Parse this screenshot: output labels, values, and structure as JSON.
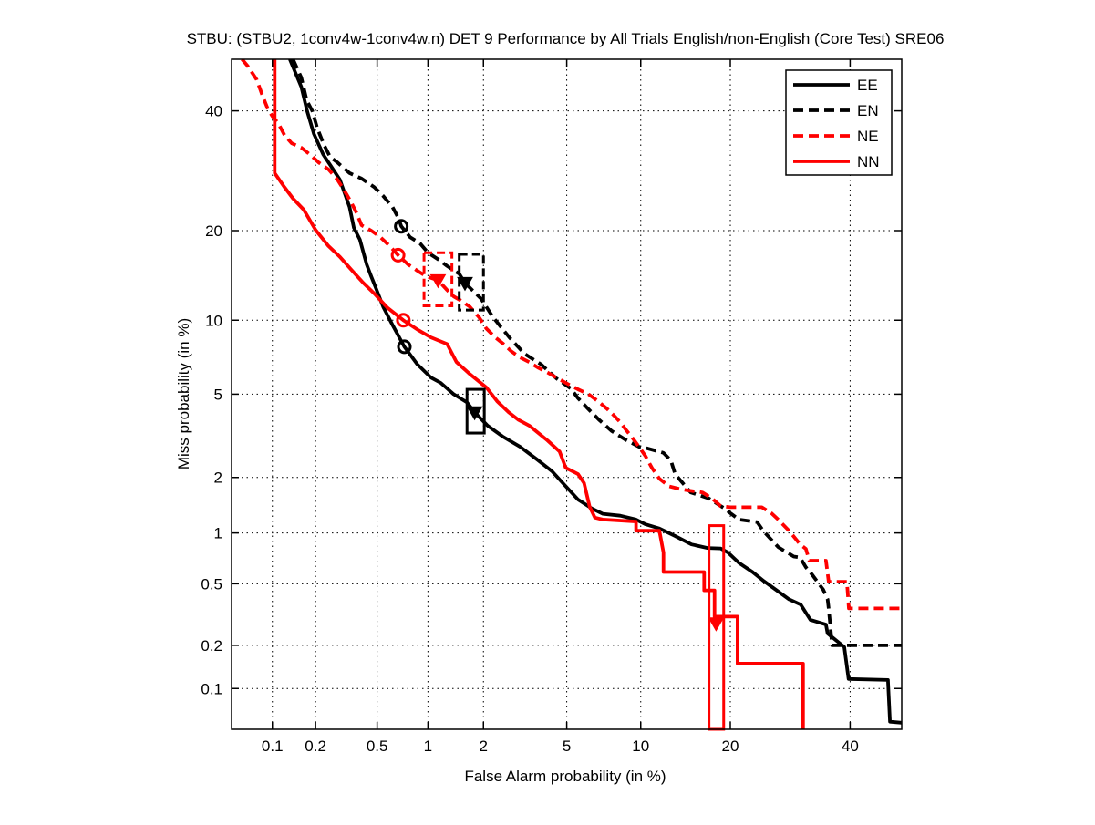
{
  "chart_data": {
    "type": "line",
    "subtype": "DET-curve",
    "title": "STBU: (STBU2, 1conv4w-1conv4w.n) DET 9 Performance by All Trials English/non-English (Core Test) SRE06",
    "xlabel": "False Alarm probability (in %)",
    "ylabel": "Miss probability (in %)",
    "axis_scale": "probit",
    "xlim_pct": [
      0.05,
      50
    ],
    "ylim_pct": [
      0.05,
      50
    ],
    "xticks_pct": [
      0.1,
      0.2,
      0.5,
      1,
      2,
      5,
      10,
      20,
      40
    ],
    "yticks_pct": [
      0.1,
      0.2,
      0.5,
      1,
      2,
      5,
      10,
      20,
      40
    ],
    "grid": true,
    "legend_position": "top-right",
    "colors": {
      "black": "#000000",
      "red": "#ff0000"
    },
    "series": [
      {
        "name": "EE",
        "color": "#000000",
        "line_style": "solid",
        "points_pct": [
          [
            0.133,
            50
          ],
          [
            0.16,
            44.6
          ],
          [
            0.175,
            40
          ],
          [
            0.195,
            35.7
          ],
          [
            0.225,
            32
          ],
          [
            0.253,
            30
          ],
          [
            0.29,
            27.7
          ],
          [
            0.335,
            23.4
          ],
          [
            0.357,
            20.4
          ],
          [
            0.39,
            18.8
          ],
          [
            0.43,
            15.7
          ],
          [
            0.46,
            14.3
          ],
          [
            0.49,
            13.1
          ],
          [
            0.545,
            11.2
          ],
          [
            0.62,
            9.6
          ],
          [
            0.73,
            7.9
          ],
          [
            0.87,
            6.7
          ],
          [
            1.04,
            5.9
          ],
          [
            1.18,
            5.6
          ],
          [
            1.39,
            5.0
          ],
          [
            1.64,
            4.6
          ],
          [
            1.8,
            4.15
          ],
          [
            2.1,
            3.6
          ],
          [
            2.5,
            3.2
          ],
          [
            3.05,
            2.85
          ],
          [
            3.7,
            2.45
          ],
          [
            4.3,
            2.15
          ],
          [
            4.95,
            1.8
          ],
          [
            5.6,
            1.53
          ],
          [
            6.4,
            1.37
          ],
          [
            7.1,
            1.28
          ],
          [
            8.35,
            1.25
          ],
          [
            9.6,
            1.19
          ],
          [
            10.4,
            1.12
          ],
          [
            11.7,
            1.06
          ],
          [
            13.3,
            0.96
          ],
          [
            15.1,
            0.86
          ],
          [
            17,
            0.82
          ],
          [
            18.7,
            0.815
          ],
          [
            19.7,
            0.77
          ],
          [
            21.2,
            0.67
          ],
          [
            23.2,
            0.59
          ],
          [
            24.9,
            0.52
          ],
          [
            26.8,
            0.46
          ],
          [
            29,
            0.4
          ],
          [
            31,
            0.37
          ],
          [
            32.7,
            0.295
          ],
          [
            35.5,
            0.275
          ],
          [
            35.8,
            0.24
          ],
          [
            38.9,
            0.195
          ],
          [
            39.7,
            0.117
          ],
          [
            47.3,
            0.115
          ],
          [
            47.7,
            0.057
          ],
          [
            50,
            0.056
          ]
        ],
        "min_cost_point_pct": [
          0.73,
          7.9
        ],
        "actual_cost_point_pct": [
          1.8,
          4.15
        ],
        "actual_cost_box_pct": {
          "x": [
            1.64,
            2.02
          ],
          "y": [
            3.32,
            5.25
          ]
        },
        "box_style": "solid"
      },
      {
        "name": "EN",
        "color": "#000000",
        "line_style": "dashed",
        "points_pct": [
          [
            0.14,
            50
          ],
          [
            0.16,
            46.4
          ],
          [
            0.174,
            42
          ],
          [
            0.19,
            40
          ],
          [
            0.205,
            36.8
          ],
          [
            0.227,
            33.8
          ],
          [
            0.25,
            31.6
          ],
          [
            0.28,
            30.6
          ],
          [
            0.335,
            28.8
          ],
          [
            0.4,
            27.9
          ],
          [
            0.48,
            26.5
          ],
          [
            0.545,
            25.1
          ],
          [
            0.62,
            23.4
          ],
          [
            0.675,
            21.7
          ],
          [
            0.7,
            20.6
          ],
          [
            0.79,
            19.1
          ],
          [
            0.9,
            18.3
          ],
          [
            1.0,
            17.1
          ],
          [
            1.14,
            16.3
          ],
          [
            1.28,
            15.5
          ],
          [
            1.49,
            14.6
          ],
          [
            1.6,
            13.6
          ],
          [
            1.94,
            12
          ],
          [
            2.23,
            10.3
          ],
          [
            2.7,
            8.6
          ],
          [
            3.2,
            7.4
          ],
          [
            3.83,
            6.7
          ],
          [
            4.5,
            5.85
          ],
          [
            5.2,
            5.3
          ],
          [
            5.6,
            4.8
          ],
          [
            6.1,
            4.36
          ],
          [
            6.85,
            3.84
          ],
          [
            7.7,
            3.4
          ],
          [
            8.7,
            3.1
          ],
          [
            9.85,
            2.85
          ],
          [
            10.6,
            2.8
          ],
          [
            12.1,
            2.66
          ],
          [
            12.85,
            2.44
          ],
          [
            13.3,
            2.08
          ],
          [
            13.6,
            2.0
          ],
          [
            15,
            1.67
          ],
          [
            17.2,
            1.55
          ],
          [
            19.1,
            1.38
          ],
          [
            20,
            1.29
          ],
          [
            21.2,
            1.19
          ],
          [
            23.9,
            1.15
          ],
          [
            24.9,
            1.02
          ],
          [
            27.2,
            0.83
          ],
          [
            29.8,
            0.73
          ],
          [
            30.9,
            0.72
          ],
          [
            31.9,
            0.63
          ],
          [
            33,
            0.57
          ],
          [
            34.2,
            0.5
          ],
          [
            35,
            0.46
          ],
          [
            35.8,
            0.4
          ],
          [
            36,
            0.35
          ],
          [
            36.3,
            0.27
          ],
          [
            36.6,
            0.2
          ],
          [
            50,
            0.2
          ]
        ],
        "min_cost_point_pct": [
          0.7,
          20.6
        ],
        "actual_cost_point_pct": [
          1.6,
          13.6
        ],
        "actual_cost_box_pct": {
          "x": [
            1.49,
            2.0
          ],
          "y": [
            10.9,
            16.9
          ]
        },
        "box_style": "dashed"
      },
      {
        "name": "NE",
        "color": "#ff0000",
        "line_style": "dashed",
        "points_pct": [
          [
            0.06,
            50
          ],
          [
            0.066,
            48.7
          ],
          [
            0.077,
            46
          ],
          [
            0.084,
            43.2
          ],
          [
            0.093,
            40.3
          ],
          [
            0.1,
            39
          ],
          [
            0.11,
            37.7
          ],
          [
            0.122,
            35.5
          ],
          [
            0.137,
            34
          ],
          [
            0.16,
            33.2
          ],
          [
            0.183,
            32
          ],
          [
            0.21,
            30.6
          ],
          [
            0.245,
            29.4
          ],
          [
            0.28,
            27.7
          ],
          [
            0.313,
            25.8
          ],
          [
            0.34,
            24.3
          ],
          [
            0.37,
            22.6
          ],
          [
            0.4,
            20.75
          ],
          [
            0.46,
            20
          ],
          [
            0.525,
            19.1
          ],
          [
            0.6,
            17.9
          ],
          [
            0.67,
            16.8
          ],
          [
            0.765,
            15.7
          ],
          [
            0.87,
            14.95
          ],
          [
            0.98,
            14.3
          ],
          [
            1.14,
            13.9
          ],
          [
            1.28,
            12.85
          ],
          [
            1.39,
            12.2
          ],
          [
            1.52,
            11.8
          ],
          [
            1.7,
            11.2
          ],
          [
            1.9,
            10.25
          ],
          [
            2.07,
            9.3
          ],
          [
            2.3,
            8.6
          ],
          [
            2.53,
            8.1
          ],
          [
            2.75,
            7.6
          ],
          [
            3.05,
            7.15
          ],
          [
            3.37,
            6.85
          ],
          [
            3.7,
            6.5
          ],
          [
            4.1,
            6.2
          ],
          [
            4.5,
            5.9
          ],
          [
            4.95,
            5.6
          ],
          [
            5.6,
            5.25
          ],
          [
            6.2,
            5.0
          ],
          [
            6.8,
            4.65
          ],
          [
            7.4,
            4.3
          ],
          [
            7.9,
            4.0
          ],
          [
            8.35,
            3.73
          ],
          [
            8.85,
            3.4
          ],
          [
            9.3,
            3.15
          ],
          [
            9.85,
            2.85
          ],
          [
            10.4,
            2.57
          ],
          [
            11,
            2.24
          ],
          [
            11.7,
            1.97
          ],
          [
            12.65,
            1.8
          ],
          [
            14,
            1.73
          ],
          [
            16.4,
            1.67
          ],
          [
            17.6,
            1.55
          ],
          [
            18.7,
            1.41
          ],
          [
            20,
            1.39
          ],
          [
            24.6,
            1.39
          ],
          [
            26.1,
            1.29
          ],
          [
            27.2,
            1.19
          ],
          [
            29,
            1.03
          ],
          [
            30.9,
            0.86
          ],
          [
            31.9,
            0.81
          ],
          [
            32.5,
            0.69
          ],
          [
            35.5,
            0.69
          ],
          [
            36,
            0.515
          ],
          [
            39.4,
            0.515
          ],
          [
            39.75,
            0.35
          ],
          [
            50,
            0.35
          ]
        ],
        "min_cost_point_pct": [
          0.67,
          16.8
        ],
        "actual_cost_point_pct": [
          1.14,
          13.9
        ],
        "actual_cost_box_pct": {
          "x": [
            0.95,
            1.36
          ],
          "y": [
            11.3,
            17.1
          ]
        },
        "box_style": "dashed"
      },
      {
        "name": "NN",
        "color": "#ff0000",
        "line_style": "solid",
        "points_pct": [
          [
            0.104,
            50
          ],
          [
            0.104,
            28.8
          ],
          [
            0.122,
            26.5
          ],
          [
            0.14,
            24.7
          ],
          [
            0.166,
            23
          ],
          [
            0.2,
            20.1
          ],
          [
            0.244,
            17.95
          ],
          [
            0.29,
            16.6
          ],
          [
            0.343,
            15.1
          ],
          [
            0.41,
            13.6
          ],
          [
            0.48,
            12.5
          ],
          [
            0.58,
            11.1
          ],
          [
            0.72,
            10
          ],
          [
            0.875,
            9.2
          ],
          [
            1.04,
            8.6
          ],
          [
            1.28,
            8.1
          ],
          [
            1.44,
            6.85
          ],
          [
            1.7,
            6.1
          ],
          [
            2.07,
            5.35
          ],
          [
            2.35,
            4.65
          ],
          [
            2.68,
            4.15
          ],
          [
            2.98,
            3.84
          ],
          [
            3.37,
            3.6
          ],
          [
            4.1,
            3.06
          ],
          [
            4.65,
            2.7
          ],
          [
            4.95,
            2.24
          ],
          [
            5.6,
            2.08
          ],
          [
            5.94,
            1.87
          ],
          [
            6.27,
            1.4
          ],
          [
            6.6,
            1.22
          ],
          [
            7.1,
            1.19
          ],
          [
            9.6,
            1.16
          ],
          [
            9.6,
            1.03
          ],
          [
            11.7,
            1.03
          ],
          [
            12.1,
            0.77
          ],
          [
            12.1,
            0.59
          ],
          [
            16.6,
            0.59
          ],
          [
            16.6,
            0.455
          ],
          [
            17.9,
            0.455
          ],
          [
            17.9,
            0.31
          ],
          [
            21,
            0.31
          ],
          [
            21,
            0.15
          ],
          [
            31.4,
            0.15
          ],
          [
            31.4,
            0.05
          ]
        ],
        "min_cost_point_pct": [
          0.72,
          10
        ],
        "actual_cost_point_pct": [
          18.1,
          0.28
        ],
        "actual_cost_box_pct": {
          "x": [
            17.2,
            19.1
          ],
          "y": [
            0.05,
            1.1
          ]
        },
        "box_style": "solid"
      }
    ]
  }
}
